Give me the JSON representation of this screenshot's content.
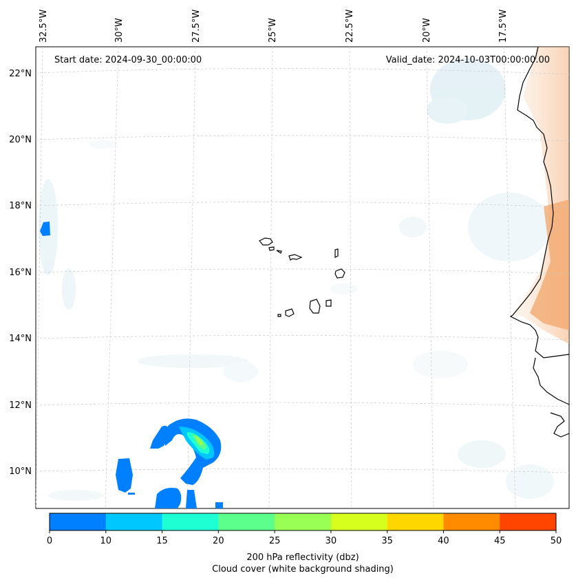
{
  "map": {
    "start_date": "Start date: 2024-09-30_00:00:00",
    "valid_date": "Valid_date: 2024-10-03T00:00:00.00",
    "lon_labels": [
      "32.5°W",
      "30°W",
      "27.5°W",
      "25°W",
      "22.5°W",
      "20°W",
      "17.5°W"
    ],
    "lat_labels": [
      "22°N",
      "20°N",
      "18°N",
      "16°N",
      "14°N",
      "12°N",
      "10°N"
    ]
  },
  "colorbar": {
    "colors": [
      "#0080ff",
      "#00c8ff",
      "#1effd4",
      "#5cff8c",
      "#99ff55",
      "#d7ff1e",
      "#ffd700",
      "#ff8c00",
      "#ff4500"
    ],
    "ticks": [
      "0",
      "10",
      "15",
      "20",
      "25",
      "30",
      "35",
      "40",
      "45",
      "50"
    ],
    "label": "200 hPa reflectivity (dbz)",
    "sublabel": "Cloud cover (white background shading)"
  }
}
